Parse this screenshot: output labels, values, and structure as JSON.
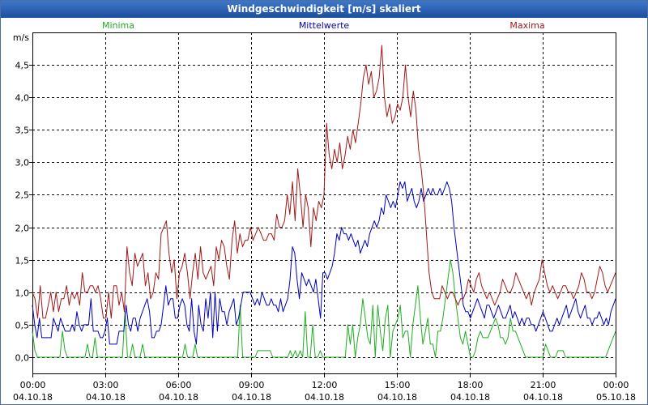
{
  "window": {
    "title": "Windgeschwindigkeit [m/s] skaliert"
  },
  "chart_data": {
    "type": "line",
    "title": "Windgeschwindigkeit [m/s] skaliert",
    "ylabel": "m/s",
    "ylim": [
      -0.25,
      5.0
    ],
    "xlim": [
      0,
      24
    ],
    "grid": true,
    "yticks": [
      0.0,
      0.5,
      1.0,
      1.5,
      2.0,
      2.5,
      3.0,
      3.5,
      4.0,
      4.5
    ],
    "ytick_labels": [
      "0,0",
      "0,5",
      "1,0",
      "1,5",
      "2,0",
      "2,5",
      "3,0",
      "3,5",
      "4,0",
      "4,5"
    ],
    "xticks": [
      {
        "time": "00:00",
        "date": "04.10.18"
      },
      {
        "time": "03:00",
        "date": "04.10.18"
      },
      {
        "time": "06:00",
        "date": "04.10.18"
      },
      {
        "time": "09:00",
        "date": "04.10.18"
      },
      {
        "time": "12:00",
        "date": "04.10.18"
      },
      {
        "time": "15:00",
        "date": "04.10.18"
      },
      {
        "time": "18:00",
        "date": "04.10.18"
      },
      {
        "time": "21:00",
        "date": "04.10.18"
      },
      {
        "time": "00:00",
        "date": "05.10.18"
      }
    ],
    "series": [
      {
        "name": "Minima",
        "color": "#1fae1f",
        "values": [
          0.4,
          0.1,
          0.0,
          0.0,
          0.0,
          0.0,
          0.0,
          0.0,
          0.0,
          0.0,
          0.0,
          0.0,
          0.4,
          0.1,
          0.0,
          0.0,
          0.0,
          0.0,
          0.0,
          0.0,
          0.0,
          0.0,
          0.2,
          0.0,
          0.0,
          0.3,
          0.0,
          0.0,
          0.0,
          0.0,
          0.0,
          0.0,
          0.0,
          0.0,
          0.0,
          0.0,
          0.0,
          0.7,
          0.0,
          0.0,
          0.2,
          0.0,
          0.0,
          0.0,
          0.2,
          0.0,
          0.0,
          0.0,
          0.0,
          0.0,
          0.0,
          0.0,
          0.0,
          0.0,
          0.0,
          0.0,
          0.0,
          0.0,
          0.0,
          0.0,
          0.0,
          0.2,
          0.0,
          0.0,
          0.0,
          0.2,
          0.0,
          0.0,
          0.0,
          0.0,
          0.0,
          0.0,
          0.0,
          0.0,
          0.0,
          0.0,
          0.0,
          0.0,
          0.0,
          0.0,
          0.0,
          0.0,
          0.0,
          0.8,
          0.0,
          0.0,
          0.0,
          0.0,
          0.0,
          0.0,
          0.1,
          0.1,
          0.1,
          0.1,
          0.1,
          0.1,
          0.0,
          0.0,
          0.0,
          0.0,
          0.0,
          0.0,
          0.0,
          0.1,
          0.0,
          0.1,
          0.0,
          0.1,
          0.0,
          0.7,
          0.0,
          0.0,
          0.5,
          0.0,
          0.0,
          0.1,
          0.0,
          0.0,
          0.0,
          0.0,
          0.0,
          0.0,
          0.0,
          0.0,
          0.0,
          0.0,
          0.5,
          0.2,
          0.5,
          0.0,
          0.3,
          0.5,
          0.9,
          0.6,
          0.3,
          0.2,
          0.8,
          0.0,
          0.8,
          0.4,
          0.1,
          0.6,
          0.8,
          0.0,
          0.4,
          0.5,
          0.6,
          0.8,
          0.3,
          0.4,
          0.4,
          0.0,
          0.5,
          0.8,
          1.1,
          0.6,
          0.2,
          0.4,
          0.6,
          0.2,
          0.2,
          0.0,
          0.4,
          0.4,
          0.6,
          0.9,
          1.2,
          1.5,
          1.3,
          0.9,
          0.6,
          0.3,
          0.2,
          0.4,
          0.2,
          0.0,
          0.0,
          0.1,
          0.3,
          0.4,
          0.3,
          0.3,
          0.3,
          0.4,
          0.5,
          0.6,
          0.5,
          0.3,
          0.3,
          0.2,
          0.3,
          0.6,
          0.4,
          0.4,
          0.3,
          0.2,
          0.1,
          0.0,
          0.0,
          0.0,
          0.0,
          0.0,
          0.0,
          0.0,
          0.0,
          0.2,
          0.1,
          0.0,
          0.0,
          0.0,
          0.1,
          0.1,
          0.1,
          0.0,
          0.0,
          0.0,
          0.0,
          0.0,
          0.0,
          0.0,
          0.0,
          0.0,
          0.0,
          0.0,
          0.0,
          0.0,
          0.0,
          0.0,
          0.0,
          0.0,
          0.1,
          0.2,
          0.3,
          0.4
        ]
      },
      {
        "name": "Mittelwerte",
        "color": "#0000bb",
        "values": [
          0.8,
          0.5,
          0.3,
          0.6,
          0.3,
          0.3,
          0.3,
          0.3,
          0.3,
          0.6,
          0.5,
          0.4,
          0.6,
          0.5,
          0.4,
          0.4,
          0.4,
          0.5,
          0.4,
          0.7,
          0.5,
          0.4,
          0.5,
          0.5,
          0.5,
          0.9,
          0.4,
          0.4,
          0.4,
          0.3,
          0.3,
          0.4,
          0.6,
          0.2,
          0.2,
          0.2,
          0.2,
          0.4,
          0.4,
          0.4,
          0.8,
          0.5,
          0.4,
          0.6,
          0.6,
          0.4,
          0.6,
          0.7,
          0.8,
          0.9,
          0.7,
          0.3,
          0.3,
          0.4,
          0.4,
          0.5,
          0.8,
          1.1,
          0.8,
          0.9,
          0.9,
          0.6,
          0.6,
          0.8,
          0.9,
          0.8,
          0.5,
          0.4,
          0.9,
          0.4,
          0.2,
          0.8,
          0.5,
          0.4,
          0.9,
          0.6,
          1.0,
          0.3,
          1.0,
          0.4,
          0.9,
          0.7,
          0.7,
          0.5,
          0.7,
          0.8,
          0.9,
          0.5,
          0.6,
          0.8,
          1.0,
          1.0,
          1.0,
          1.0,
          0.9,
          0.8,
          0.9,
          0.8,
          1.0,
          0.9,
          0.8,
          0.8,
          0.9,
          0.8,
          0.8,
          0.7,
          0.9,
          0.7,
          0.8,
          0.9,
          1.2,
          1.7,
          1.6,
          1.2,
          0.9,
          1.3,
          1.2,
          1.1,
          1.2,
          1.1,
          1.0,
          1.2,
          0.9,
          0.6,
          1.3,
          1.3,
          1.2,
          1.3,
          1.4,
          1.6,
          1.9,
          1.8,
          2.0,
          1.9,
          1.9,
          1.8,
          1.9,
          1.8,
          1.7,
          1.8,
          1.6,
          1.7,
          1.8,
          1.7,
          1.9,
          2.0,
          2.1,
          2.0,
          2.1,
          2.3,
          2.2,
          2.5,
          2.4,
          2.3,
          2.4,
          2.3,
          2.5,
          2.7,
          2.6,
          2.7,
          2.4,
          2.5,
          2.6,
          2.4,
          2.3,
          2.4,
          2.6,
          2.4,
          2.5,
          2.6,
          2.5,
          2.6,
          2.5,
          2.5,
          2.6,
          2.5,
          2.6,
          2.7,
          2.6,
          2.4,
          2.0,
          1.7,
          1.4,
          1.1,
          0.8,
          0.7,
          0.7,
          0.6,
          0.7,
          0.8,
          0.9,
          0.8,
          0.7,
          0.6,
          0.8,
          0.8,
          0.7,
          0.6,
          0.7,
          0.8,
          0.7,
          0.6,
          0.6,
          0.7,
          0.8,
          0.6,
          0.7,
          0.6,
          0.5,
          0.6,
          0.5,
          0.6,
          0.6,
          0.5,
          0.5,
          0.4,
          0.5,
          0.6,
          0.7,
          0.6,
          0.5,
          0.4,
          0.4,
          0.5,
          0.6,
          0.5,
          0.6,
          0.7,
          0.8,
          0.6,
          0.7,
          0.8,
          0.9,
          0.7,
          0.6,
          0.7,
          0.8,
          0.6,
          0.6,
          0.5,
          0.6,
          0.6,
          0.7,
          0.6,
          0.5,
          0.6,
          0.5,
          0.7,
          0.8,
          0.9
        ]
      },
      {
        "name": "Maxima",
        "color": "#a01818",
        "values": [
          1.0,
          0.9,
          0.6,
          1.1,
          0.6,
          0.6,
          0.8,
          1.0,
          0.7,
          1.0,
          0.7,
          0.9,
          0.9,
          1.1,
          0.8,
          1.0,
          0.9,
          1.0,
          0.8,
          1.3,
          1.0,
          1.0,
          1.1,
          1.1,
          1.0,
          1.1,
          0.9,
          0.6,
          0.6,
          1.0,
          0.6,
          1.1,
          1.1,
          0.8,
          1.0,
          0.7,
          1.7,
          1.3,
          1.1,
          1.6,
          1.4,
          1.5,
          1.6,
          1.1,
          1.3,
          0.9,
          1.0,
          1.3,
          1.2,
          1.9,
          2.0,
          2.1,
          1.6,
          1.3,
          1.5,
          0.9,
          1.3,
          1.4,
          1.6,
          1.3,
          0.9,
          1.3,
          1.6,
          1.2,
          1.7,
          1.3,
          1.2,
          1.3,
          1.4,
          1.1,
          1.7,
          1.5,
          1.8,
          1.7,
          1.4,
          1.2,
          1.8,
          2.1,
          1.6,
          1.9,
          1.7,
          1.8,
          1.8,
          2.0,
          1.8,
          1.9,
          2.0,
          1.9,
          1.8,
          1.8,
          1.9,
          1.9,
          1.8,
          2.2,
          2.0,
          2.0,
          2.1,
          2.5,
          2.2,
          2.7,
          2.1,
          2.9,
          2.5,
          2.0,
          2.5,
          2.3,
          1.7,
          2.3,
          2.1,
          2.4,
          2.3,
          2.5,
          3.6,
          3.1,
          2.9,
          3.2,
          3.0,
          3.3,
          2.9,
          3.1,
          3.4,
          3.2,
          3.5,
          3.3,
          3.6,
          3.9,
          4.3,
          4.5,
          4.2,
          4.4,
          4.0,
          4.1,
          4.3,
          4.8,
          4.0,
          3.7,
          3.9,
          3.6,
          3.7,
          3.9,
          3.8,
          4.0,
          4.5,
          4.0,
          3.7,
          4.1,
          3.8,
          3.2,
          2.9,
          2.5,
          1.9,
          1.3,
          1.0,
          0.9,
          0.9,
          0.9,
          1.1,
          1.0,
          0.9,
          1.0,
          1.0,
          0.9,
          0.8,
          0.9,
          0.9,
          1.0,
          1.2,
          1.1,
          1.0,
          1.2,
          1.3,
          1.1,
          1.0,
          0.9,
          1.0,
          0.9,
          0.8,
          0.9,
          1.0,
          1.2,
          1.1,
          1.0,
          1.0,
          1.1,
          1.3,
          1.2,
          1.1,
          1.0,
          0.9,
          1.0,
          0.8,
          1.0,
          1.1,
          1.2,
          1.5,
          1.3,
          1.1,
          1.0,
          1.1,
          1.0,
          0.9,
          1.0,
          1.1,
          1.1,
          1.0,
          1.0,
          0.9,
          1.0,
          1.1,
          1.3,
          1.2,
          1.0,
          1.0,
          0.9,
          1.0,
          1.2,
          1.4,
          1.3,
          1.1,
          1.0,
          1.1,
          1.2,
          1.3
        ]
      }
    ]
  }
}
